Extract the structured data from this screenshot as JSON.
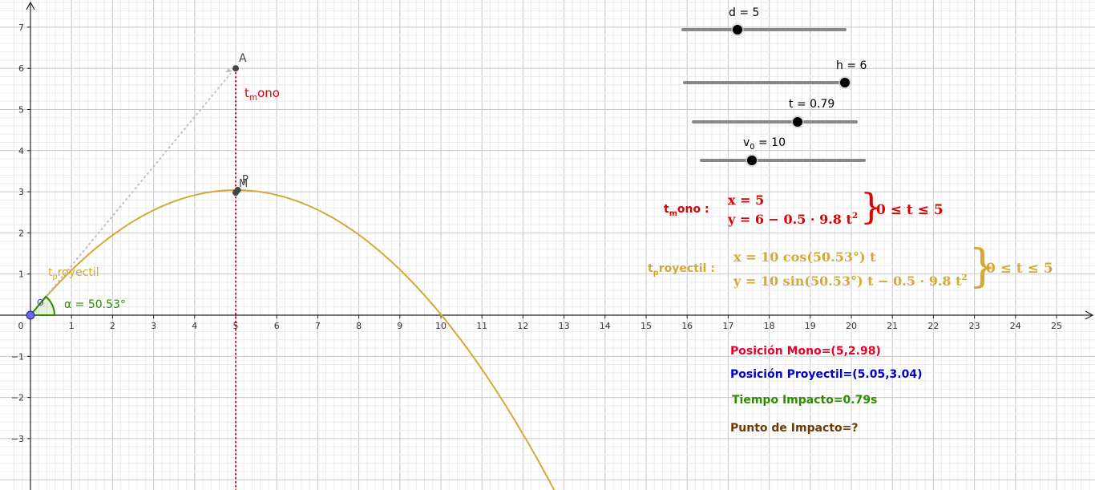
{
  "colors": {
    "parabola": "#d5a935",
    "mono": "#e00000",
    "blue": "#0000d0",
    "green": "#2e8b00",
    "brown": "#6b3a00",
    "axis": "#222222",
    "grid_major": "#c8c8c8",
    "grid_minor": "#ececec",
    "slider": "#888888",
    "vector": "#c0c0c0"
  },
  "graph": {
    "x_ticks": [
      "0",
      "1",
      "2",
      "3",
      "4",
      "5",
      "6",
      "7",
      "8",
      "9",
      "10",
      "11",
      "12",
      "13",
      "14",
      "15",
      "16",
      "17",
      "18",
      "19",
      "20",
      "21",
      "22",
      "23",
      "24",
      "25"
    ],
    "y_ticks": [
      "7",
      "6",
      "5",
      "4",
      "3",
      "2",
      "1",
      "−1",
      "−2",
      "−3"
    ],
    "point_A": {
      "label": "A",
      "x": 5,
      "y": 6
    },
    "point_P": {
      "label": "P",
      "x": 5.05,
      "y": 3.04
    },
    "point_M": {
      "label": "M",
      "x": 5,
      "y": 2.98
    },
    "origin": {
      "label": "O",
      "x": 0,
      "y": 0
    },
    "angle_label": "α = 50.53°",
    "tmono_label": {
      "main": "t",
      "sub": "m",
      "rest": "ono"
    },
    "tproy_label": {
      "main": "t",
      "sub": "p",
      "rest": "royectil"
    },
    "parabola": {
      "v0": 10,
      "angle_deg": 50.53,
      "g": 9.8
    }
  },
  "sliders": [
    {
      "name": "d",
      "label": "d = 5",
      "value": 5
    },
    {
      "name": "h",
      "label": "h = 6",
      "value": 6
    },
    {
      "name": "t",
      "label": "t = 0.79",
      "value": 0.79
    },
    {
      "name": "v0",
      "label_main": "v",
      "label_sub": "0",
      "label_rest": " = 10",
      "value": 10
    }
  ],
  "equations": {
    "mono": {
      "name_main": "t",
      "name_sub": "m",
      "name_rest": "ono :",
      "line1": "x = 5",
      "line2": "y = 6 − 0.5 · 9.8 t",
      "line2_sup": "2",
      "range": "0 ≤ t ≤ 5"
    },
    "proyectil": {
      "name_main": "t",
      "name_sub": "p",
      "name_rest": "royectil :",
      "line1": "x = 10  cos(50.53°) t",
      "line2": "y = 10  sin(50.53°) t − 0.5 · 9.8 t",
      "line2_sup": "2",
      "range": "0 ≤ t ≤ 5"
    }
  },
  "info": {
    "posicion_mono": "Posición Mono=(5,2.98)",
    "posicion_proyectil": "Posición Proyectil=(5.05,3.04)",
    "tiempo_impacto": "Tiempo Impacto=0.79s",
    "punto_impacto": "Punto de Impacto=?"
  }
}
